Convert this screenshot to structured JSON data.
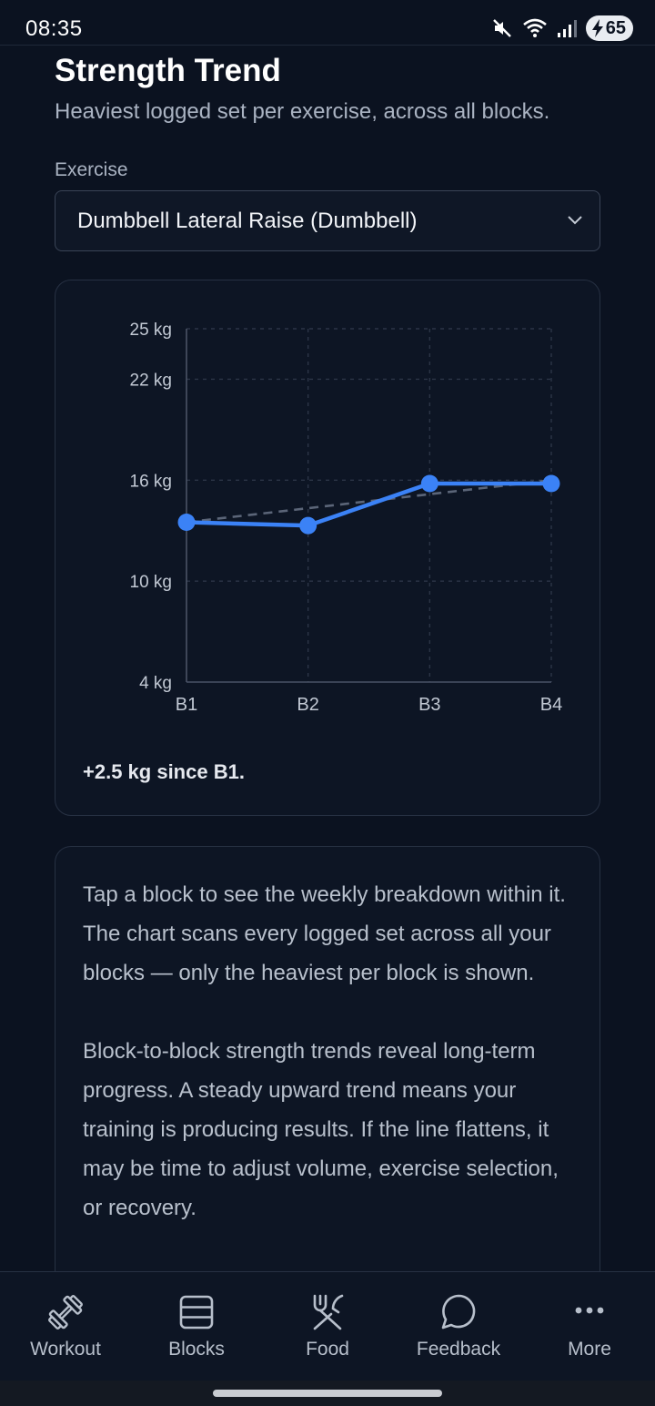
{
  "status_bar": {
    "time": "08:35",
    "battery_level": "65",
    "icons": [
      "mute-icon",
      "wifi-icon",
      "signal-icon",
      "charging-bolt-icon"
    ]
  },
  "page": {
    "title": "Strength Trend",
    "subtitle": "Heaviest logged set per exercise, across all blocks."
  },
  "exercise_select": {
    "label": "Exercise",
    "value": "Dumbbell Lateral Raise (Dumbbell)",
    "icon": "chevron-down-icon"
  },
  "chart_card": {
    "summary": "+2.5 kg since B1."
  },
  "chart_data": {
    "type": "line",
    "categories": [
      "B1",
      "B2",
      "B3",
      "B4"
    ],
    "series": [
      {
        "values": [
          13.5,
          13.3,
          15.8,
          15.8
        ],
        "color": "#3b82f6",
        "style": "solid-with-markers"
      }
    ],
    "trendline": {
      "start": 13.5,
      "end": 16,
      "style": "dashed",
      "color": "#5b6578"
    },
    "y_ticks": [
      4,
      10,
      16,
      22,
      25
    ],
    "y_tick_labels": [
      "4 kg",
      "10 kg",
      "16 kg",
      "22 kg",
      "25 kg"
    ],
    "ylim": [
      4,
      25
    ],
    "grid": true
  },
  "info_card": {
    "paragraph_1": "Tap a block to see the weekly breakdown within it. The chart scans every logged set across all your blocks — only the heaviest per block is shown.",
    "paragraph_2": "Block-to-block strength trends reveal long-term progress. A steady upward trend means your training is producing results. If the line flattens, it may be time to adjust volume, exercise selection, or recovery."
  },
  "bottom_nav": {
    "items": [
      {
        "label": "Workout",
        "icon": "dumbbell-icon"
      },
      {
        "label": "Blocks",
        "icon": "blocks-icon"
      },
      {
        "label": "Food",
        "icon": "fork-knife-icon"
      },
      {
        "label": "Feedback",
        "icon": "chat-bubble-icon"
      },
      {
        "label": "More",
        "icon": "more-dots-icon"
      }
    ]
  }
}
